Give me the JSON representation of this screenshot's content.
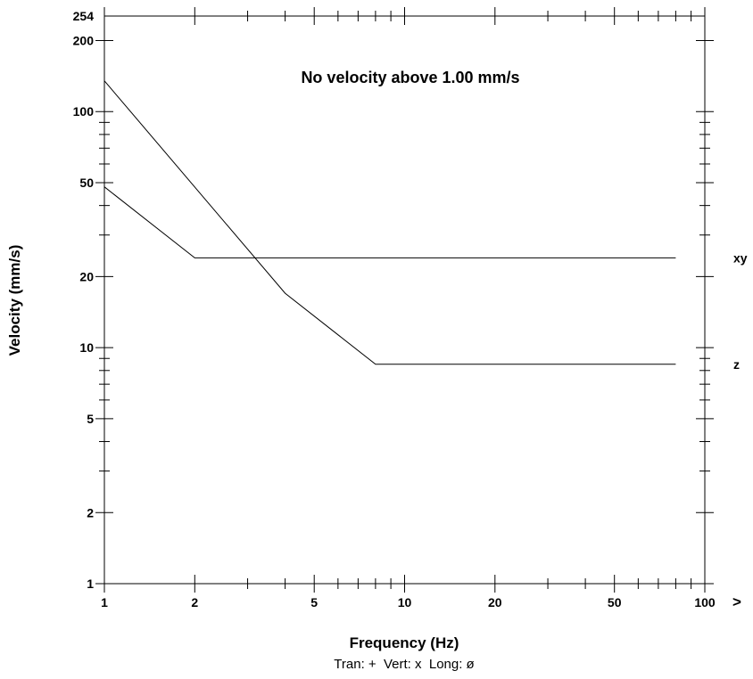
{
  "chart_data": {
    "type": "line",
    "xscale": "log",
    "yscale": "log",
    "xlim": [
      1,
      100
    ],
    "ylim": [
      1,
      254
    ],
    "xlabel": "Frequency (Hz)",
    "ylabel": "Velocity (mm/s)",
    "annotation": "No velocity above 1.00 mm/s",
    "legend_note": "Tran: +  Vert: x  Long: ø",
    "x_arrow": ">",
    "x_ticks": [
      "1",
      "2",
      "5",
      "10",
      "20",
      "50",
      "100"
    ],
    "y_ticks": [
      "1",
      "2",
      "5",
      "10",
      "20",
      "50",
      "100",
      "200",
      "254"
    ],
    "series": [
      {
        "name": "xy",
        "x": [
          1,
          2,
          80
        ],
        "y": [
          48,
          24,
          24
        ]
      },
      {
        "name": "z",
        "x": [
          1,
          4,
          8,
          80
        ],
        "y": [
          135,
          17,
          8.5,
          8.5
        ]
      }
    ],
    "grid": false
  }
}
